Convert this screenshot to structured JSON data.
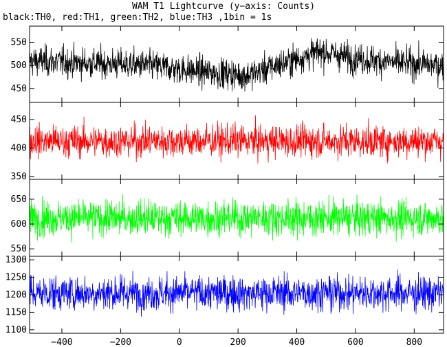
{
  "chart": {
    "title": "WAM T1 Lightcurve (y−axis: Counts)",
    "subtitle": "black:TH0, red:TH1, green:TH2, blue:TH3 ,1bin = 1s"
  },
  "chart_data": {
    "type": "line",
    "title": "WAM T1 Lightcurve (y−axis: Counts)",
    "subtitle": "black:TH0, red:TH1, green:TH2, blue:TH3 ,1bin = 1s",
    "x_range": [
      -510,
      900
    ],
    "x_ticks": [
      -400,
      -200,
      0,
      200,
      400,
      600,
      800
    ],
    "x_tick_labels": [
      "−400",
      "−200",
      "0",
      "200",
      "400",
      "600",
      "800"
    ],
    "bin_seconds": 1,
    "panels": [
      {
        "series": "TH0",
        "color": "#000000",
        "ylim": [
          420,
          585
        ],
        "yticks": [
          450,
          500,
          550
        ],
        "mean_profile": [
          {
            "x": -510,
            "y": 510
          },
          {
            "x": -100,
            "y": 500
          },
          {
            "x": 50,
            "y": 488
          },
          {
            "x": 230,
            "y": 478
          },
          {
            "x": 330,
            "y": 500
          },
          {
            "x": 480,
            "y": 530
          },
          {
            "x": 600,
            "y": 515
          },
          {
            "x": 750,
            "y": 505
          },
          {
            "x": 900,
            "y": 500
          }
        ],
        "noise_sigma": 23
      },
      {
        "series": "TH1",
        "color": "#ff0000",
        "ylim": [
          345,
          480
        ],
        "yticks": [
          350,
          400,
          450
        ],
        "mean_profile": [
          {
            "x": -510,
            "y": 412
          },
          {
            "x": 900,
            "y": 412
          }
        ],
        "noise_sigma": 20
      },
      {
        "series": "TH2",
        "color": "#00ff00",
        "ylim": [
          535,
          690
        ],
        "yticks": [
          550,
          600,
          650
        ],
        "mean_profile": [
          {
            "x": -510,
            "y": 612
          },
          {
            "x": 900,
            "y": 612
          }
        ],
        "noise_sigma": 25
      },
      {
        "series": "TH3",
        "color": "#0000ff",
        "ylim": [
          1090,
          1310
        ],
        "yticks": [
          1100,
          1150,
          1200,
          1250,
          1300
        ],
        "mean_profile": [
          {
            "x": -510,
            "y": 1205
          },
          {
            "x": 900,
            "y": 1205
          }
        ],
        "noise_sigma": 35
      }
    ]
  }
}
